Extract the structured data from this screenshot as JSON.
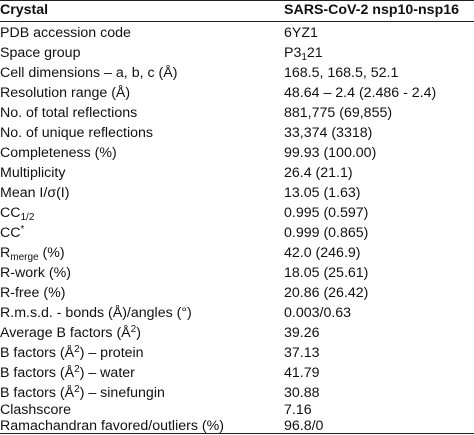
{
  "header": {
    "col1": "Crystal",
    "col2": "SARS-CoV-2 nsp10-nsp16"
  },
  "rows": [
    {
      "label": "PDB accession code",
      "value": "6YZ1"
    },
    {
      "label": "Space group",
      "value_prefix": "P3",
      "value_sub": "1",
      "value_suffix": "21"
    },
    {
      "label": "Cell dimensions – a, b, c (Å)",
      "value": "168.5, 168.5, 52.1"
    },
    {
      "label": "Resolution range (Å)",
      "value": "48.64 – 2.4 (2.486 - 2.4)"
    },
    {
      "label": "No. of total reflections",
      "value": "881,775 (69,855)"
    },
    {
      "label": "No. of unique reflections",
      "value": "33,374 (3318)"
    },
    {
      "label": "Completeness (%)",
      "value": "99.93 (100.00)"
    },
    {
      "label": "Multiplicity",
      "value": "26.4 (21.1)"
    },
    {
      "label": "Mean I/σ(I)",
      "value": "13.05 (1.63)"
    },
    {
      "label_prefix": "CC",
      "label_sub": "1/2",
      "value": "0.995 (0.597)"
    },
    {
      "label_prefix": "CC",
      "label_sup": "*",
      "value": "0.999 (0.865)"
    },
    {
      "label_prefix": "R",
      "label_sub": "merge",
      "label_suffix": " (%)",
      "value": "42.0 (246.9)"
    },
    {
      "label": "R-work (%)",
      "value": "18.05 (25.61)"
    },
    {
      "label": "R-free (%)",
      "value": "20.86 (26.42)"
    },
    {
      "label": "R.m.s.d. - bonds (Å)/angles (°)",
      "value": "0.003/0.63"
    },
    {
      "label_prefix": "Average B factors (Å",
      "label_sup": "2",
      "label_suffix": ")",
      "value": "39.26"
    },
    {
      "label_prefix": "B factors (Å",
      "label_sup": "2",
      "label_suffix": ") – protein",
      "value": "37.13"
    },
    {
      "label_prefix": "B factors (Å",
      "label_sup": "2",
      "label_suffix": ") – water",
      "value": "41.79"
    },
    {
      "label_prefix": "B factors (Å",
      "label_sup": "2",
      "label_suffix": ") – sinefungin",
      "value": "30.88"
    },
    {
      "label": "Clashscore",
      "value": "7.16"
    },
    {
      "label": "Ramachandran favored/outliers (%)",
      "value": "96.8/0"
    }
  ]
}
